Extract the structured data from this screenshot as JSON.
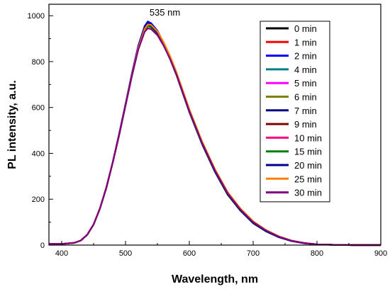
{
  "chart_data": {
    "type": "line",
    "title": "",
    "xlabel": "Wavelength, nm",
    "ylabel": "PL intensity, a.u.",
    "xlim": [
      380,
      900
    ],
    "ylim": [
      0,
      1050
    ],
    "xticks": [
      400,
      500,
      600,
      700,
      800,
      900
    ],
    "yticks": [
      0,
      200,
      400,
      600,
      800,
      1000
    ],
    "grid": false,
    "legend_position": "top-right",
    "annotations": [
      {
        "text": "535 nm",
        "x": 535,
        "y": 1000
      }
    ],
    "x": [
      380,
      400,
      420,
      430,
      440,
      450,
      460,
      470,
      480,
      490,
      500,
      510,
      520,
      530,
      535,
      540,
      550,
      560,
      570,
      580,
      590,
      600,
      620,
      640,
      660,
      680,
      700,
      720,
      740,
      760,
      780,
      800,
      830,
      860,
      900
    ],
    "series": [
      {
        "name": "0 min",
        "color": "#000000",
        "values": [
          5,
          5,
          10,
          20,
          45,
          90,
          160,
          250,
          360,
          480,
          610,
          740,
          860,
          940,
          955,
          950,
          920,
          870,
          810,
          740,
          660,
          580,
          440,
          320,
          220,
          150,
          95,
          60,
          35,
          18,
          8,
          3,
          1,
          0,
          0
        ]
      },
      {
        "name": "1 min",
        "color": "#ff0000",
        "values": [
          5,
          5,
          10,
          20,
          45,
          90,
          160,
          250,
          360,
          480,
          610,
          740,
          860,
          940,
          958,
          955,
          925,
          875,
          815,
          745,
          665,
          585,
          445,
          325,
          225,
          155,
          100,
          63,
          37,
          19,
          9,
          3,
          1,
          0,
          0
        ]
      },
      {
        "name": "2 min",
        "color": "#0000ff",
        "values": [
          5,
          5,
          10,
          20,
          45,
          90,
          160,
          252,
          362,
          485,
          615,
          748,
          870,
          955,
          975,
          968,
          935,
          880,
          815,
          745,
          665,
          585,
          445,
          325,
          225,
          153,
          98,
          62,
          36,
          19,
          9,
          3,
          1,
          0,
          0
        ]
      },
      {
        "name": "4 min",
        "color": "#008080",
        "values": [
          5,
          5,
          10,
          20,
          45,
          90,
          160,
          250,
          360,
          480,
          610,
          740,
          860,
          940,
          957,
          952,
          922,
          872,
          812,
          742,
          662,
          582,
          442,
          322,
          222,
          152,
          97,
          61,
          35,
          18,
          8,
          3,
          1,
          0,
          0
        ]
      },
      {
        "name": "5 min",
        "color": "#ff00ff",
        "values": [
          5,
          5,
          10,
          20,
          45,
          90,
          160,
          250,
          360,
          480,
          610,
          740,
          860,
          940,
          956,
          951,
          921,
          871,
          811,
          741,
          661,
          581,
          441,
          321,
          221,
          151,
          96,
          61,
          35,
          18,
          8,
          3,
          1,
          0,
          0
        ]
      },
      {
        "name": "6 min",
        "color": "#808000",
        "values": [
          5,
          5,
          10,
          20,
          45,
          90,
          160,
          250,
          360,
          480,
          610,
          740,
          860,
          942,
          960,
          957,
          928,
          878,
          818,
          748,
          668,
          588,
          448,
          328,
          228,
          157,
          101,
          64,
          37,
          19,
          9,
          3,
          1,
          0,
          0
        ]
      },
      {
        "name": "7 min",
        "color": "#000080",
        "values": [
          5,
          5,
          10,
          20,
          45,
          90,
          160,
          251,
          361,
          483,
          613,
          745,
          866,
          950,
          968,
          962,
          930,
          877,
          813,
          743,
          663,
          583,
          443,
          323,
          223,
          152,
          97,
          61,
          35,
          18,
          8,
          3,
          1,
          0,
          0
        ]
      },
      {
        "name": "9 min",
        "color": "#800000",
        "values": [
          5,
          5,
          10,
          20,
          45,
          90,
          160,
          250,
          360,
          480,
          610,
          740,
          860,
          940,
          956,
          951,
          922,
          873,
          813,
          743,
          663,
          583,
          443,
          323,
          223,
          152,
          98,
          62,
          36,
          19,
          9,
          3,
          1,
          0,
          0
        ]
      },
      {
        "name": "10 min",
        "color": "#ff0080",
        "values": [
          5,
          5,
          10,
          20,
          45,
          90,
          160,
          250,
          360,
          480,
          610,
          740,
          860,
          940,
          957,
          952,
          923,
          874,
          814,
          744,
          664,
          584,
          444,
          324,
          224,
          153,
          98,
          62,
          36,
          19,
          9,
          3,
          1,
          0,
          0
        ]
      },
      {
        "name": "15 min",
        "color": "#008000",
        "values": [
          5,
          5,
          10,
          20,
          45,
          90,
          160,
          250,
          360,
          480,
          610,
          740,
          860,
          940,
          955,
          950,
          920,
          870,
          810,
          740,
          660,
          580,
          440,
          320,
          220,
          150,
          95,
          60,
          35,
          18,
          8,
          3,
          1,
          0,
          0
        ]
      },
      {
        "name": "20 min",
        "color": "#00008b",
        "values": [
          5,
          5,
          10,
          20,
          45,
          90,
          160,
          251,
          361,
          482,
          612,
          744,
          864,
          946,
          962,
          957,
          926,
          874,
          812,
          742,
          662,
          582,
          442,
          322,
          222,
          151,
          96,
          61,
          35,
          18,
          8,
          3,
          1,
          0,
          0
        ]
      },
      {
        "name": "25 min",
        "color": "#ff8000",
        "values": [
          5,
          5,
          10,
          20,
          45,
          90,
          160,
          250,
          360,
          480,
          610,
          740,
          860,
          942,
          962,
          960,
          932,
          883,
          823,
          753,
          673,
          593,
          452,
          332,
          232,
          160,
          104,
          66,
          39,
          20,
          9,
          3,
          1,
          0,
          0
        ]
      },
      {
        "name": "30 min",
        "color": "#800080",
        "values": [
          5,
          5,
          10,
          20,
          45,
          90,
          160,
          250,
          360,
          480,
          608,
          736,
          852,
          930,
          945,
          942,
          915,
          868,
          810,
          742,
          663,
          584,
          445,
          326,
          226,
          155,
          100,
          64,
          37,
          19,
          9,
          3,
          1,
          0,
          0
        ]
      }
    ]
  }
}
